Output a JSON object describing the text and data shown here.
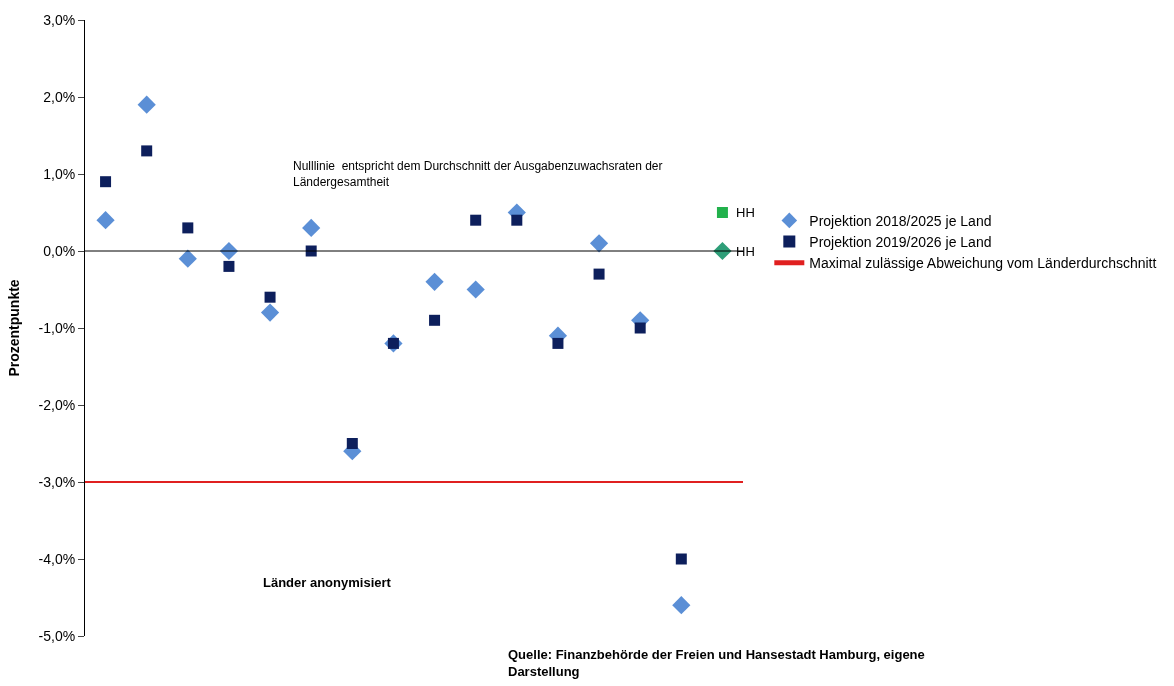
{
  "chart_data": {
    "type": "scatter",
    "ylabel": "Prozentpunkte",
    "xlabel": "Länder anonymisiert",
    "categories": [
      null,
      null,
      null,
      null,
      null,
      null,
      null,
      null,
      null,
      null,
      null,
      null,
      null,
      null,
      null,
      null
    ],
    "series": [
      {
        "name": "Projektion 2018/2025 je Land",
        "color": "#5b8fd6",
        "marker": "diamond",
        "values": [
          0.4,
          1.9,
          -0.1,
          0.0,
          -0.8,
          0.3,
          -2.6,
          -1.2,
          -0.4,
          -0.5,
          0.5,
          -1.1,
          0.1,
          -0.9,
          -4.6,
          0.0
        ],
        "colors": [
          null,
          null,
          null,
          null,
          null,
          null,
          null,
          null,
          null,
          null,
          null,
          null,
          null,
          null,
          null,
          "#2e9e78"
        ]
      },
      {
        "name": "Projektion 2019/2026 je Land",
        "color": "#0d1f5c",
        "marker": "square",
        "values": [
          0.9,
          1.3,
          0.3,
          -0.2,
          -0.6,
          0.0,
          -2.5,
          -1.2,
          -0.9,
          0.4,
          0.4,
          -1.2,
          -0.3,
          -1.0,
          -4.0,
          0.5
        ],
        "colors": [
          null,
          null,
          null,
          null,
          null,
          null,
          null,
          null,
          null,
          null,
          null,
          null,
          null,
          null,
          null,
          "#22b14c"
        ]
      }
    ],
    "ref_lines": [
      {
        "axis": "y",
        "value": -3.0,
        "label": "Maximal zulässige Abweichung vom Länderdurchschnitt",
        "color": "#e02020",
        "line_style": "solid"
      },
      {
        "axis": "y",
        "value": 0.0,
        "color": "#000000",
        "line_style": "solid"
      }
    ],
    "ylim": [
      -5.0,
      3.0
    ],
    "yticks": [
      {
        "value": -5,
        "label": "-5,0%"
      },
      {
        "value": -4,
        "label": "-4,0%"
      },
      {
        "value": -3,
        "label": "-3,0%"
      },
      {
        "value": -2,
        "label": "-2,0%"
      },
      {
        "value": -1,
        "label": "-1,0%"
      },
      {
        "value": 0,
        "label": "0,0%"
      },
      {
        "value": 1,
        "label": "1,0%"
      },
      {
        "value": 2,
        "label": "2,0%"
      },
      {
        "value": 3,
        "label": "3,0%"
      }
    ],
    "annotations": [
      "HH",
      "HH",
      "Nulllinie  entspricht dem Durchschnitt der Ausgabenzuwachsraten der\nLändergesamtheit",
      "Quelle: Finanzbehörde der Freien und Hansestadt Hamburg, eigene\nDarstellung"
    ],
    "legend": "right"
  }
}
